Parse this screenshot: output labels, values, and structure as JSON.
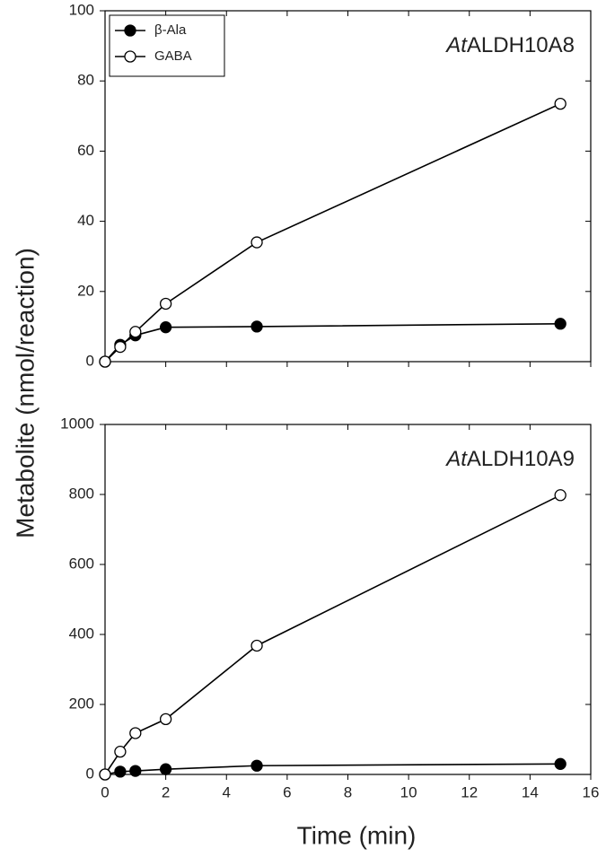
{
  "chart_data": [
    {
      "type": "line",
      "title_parts": [
        "At",
        "ALDH10A8"
      ],
      "ylabel": "Metabolite (nmol/reaction)",
      "x": [
        0,
        0.5,
        1,
        2,
        5,
        15
      ],
      "series": [
        {
          "name": "β-Ala",
          "color": "#000000",
          "filled": true,
          "values": [
            0,
            4.8,
            7.5,
            9.8,
            10,
            10.8
          ]
        },
        {
          "name": "GABA",
          "color": "#000000",
          "filled": false,
          "values": [
            0,
            4.2,
            8.5,
            16.5,
            34,
            73.5
          ]
        }
      ],
      "xlim": [
        0,
        16
      ],
      "xticks": [
        0,
        2,
        4,
        6,
        8,
        10,
        12,
        14,
        16
      ],
      "show_xtick_labels": false,
      "ylim": [
        0,
        100
      ],
      "yticks": [
        0,
        20,
        40,
        60,
        80,
        100
      ],
      "legend": "upper left"
    },
    {
      "type": "line",
      "title_parts": [
        "At",
        "ALDH10A9"
      ],
      "xlabel": "Time (min)",
      "x": [
        0,
        0.5,
        1,
        2,
        5,
        15
      ],
      "series": [
        {
          "name": "β-Ala",
          "color": "#000000",
          "filled": true,
          "values": [
            0,
            8,
            10,
            15,
            25,
            30
          ]
        },
        {
          "name": "GABA",
          "color": "#000000",
          "filled": false,
          "values": [
            0,
            65,
            118,
            158,
            368,
            798
          ]
        }
      ],
      "xlim": [
        0,
        16
      ],
      "xticks": [
        0,
        2,
        4,
        6,
        8,
        10,
        12,
        14,
        16
      ],
      "show_xtick_labels": true,
      "ylim": [
        0,
        1000
      ],
      "yticks": [
        0,
        200,
        400,
        600,
        800,
        1000
      ]
    }
  ]
}
